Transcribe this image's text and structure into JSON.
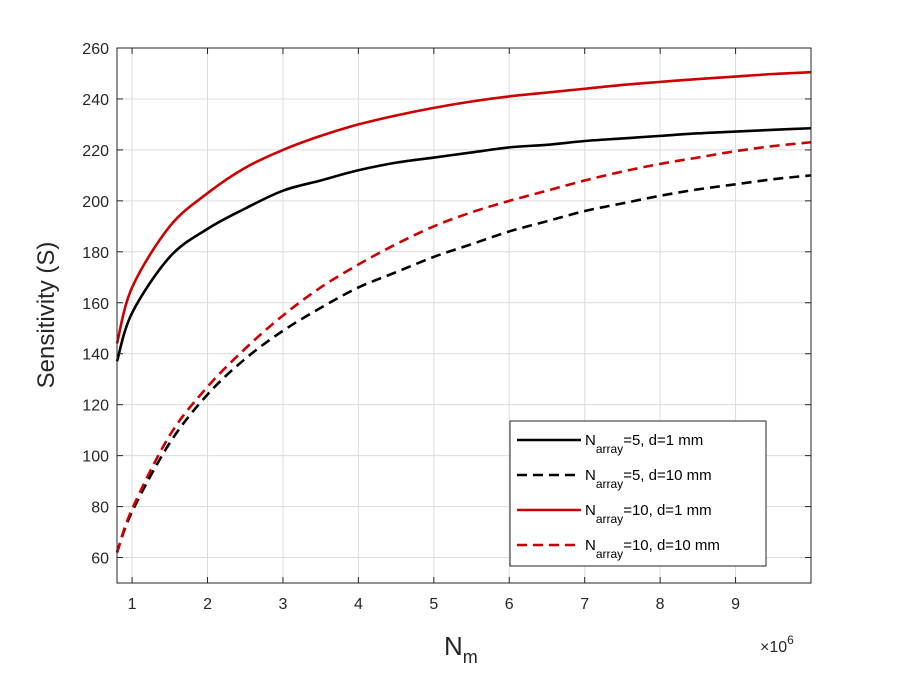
{
  "chart_data": {
    "type": "line",
    "xlabel": {
      "main": "N",
      "sub": "m"
    },
    "ylabel": "Sensitivity (S)",
    "x_multiplier": {
      "prefix": "×10",
      "exp": "6"
    },
    "xlim": [
      0.8,
      10.0
    ],
    "ylim": [
      50,
      260
    ],
    "xticks": [
      1,
      2,
      3,
      4,
      5,
      6,
      7,
      8,
      9
    ],
    "yticks": [
      60,
      80,
      100,
      120,
      140,
      160,
      180,
      200,
      220,
      240,
      260
    ],
    "grid": true,
    "legend_position": "bottom-right",
    "x": [
      0.8,
      1.0,
      1.5,
      2.0,
      2.5,
      3.0,
      3.5,
      4.0,
      4.5,
      5.0,
      5.5,
      6.0,
      6.5,
      7.0,
      7.5,
      8.0,
      8.5,
      9.0,
      9.5,
      10.0
    ],
    "series": [
      {
        "name": {
          "prefix": "N",
          "sub": "array",
          "suffix": "=5, d=1 mm"
        },
        "color": "#000000",
        "dash": "solid",
        "values": [
          137,
          156,
          178,
          189,
          197,
          204,
          208,
          212,
          215,
          217,
          219,
          221,
          222,
          223.5,
          224.5,
          225.5,
          226.5,
          227.2,
          227.9,
          228.5
        ]
      },
      {
        "name": {
          "prefix": "N",
          "sub": "array",
          "suffix": "=5, d=10 mm"
        },
        "color": "#000000",
        "dash": "dashed",
        "values": [
          62,
          78,
          105,
          124,
          138,
          149,
          158,
          166,
          172,
          178,
          183,
          188,
          192,
          196,
          199,
          202,
          204.5,
          206.5,
          208.5,
          210
        ]
      },
      {
        "name": {
          "prefix": "N",
          "sub": "array",
          "suffix": "=10, d=1 mm"
        },
        "color": "#cc0000",
        "dash": "solid",
        "values": [
          144,
          166,
          190,
          203,
          213,
          220,
          225.5,
          230,
          233.5,
          236.5,
          239,
          241,
          242.5,
          244,
          245.5,
          246.7,
          247.8,
          248.8,
          249.8,
          250.5
        ]
      },
      {
        "name": {
          "prefix": "N",
          "sub": "array",
          "suffix": "=10, d=10 mm"
        },
        "color": "#cc0000",
        "dash": "dashed",
        "values": [
          62,
          79,
          108,
          127,
          142,
          155,
          166,
          175,
          183,
          190,
          195.5,
          200,
          204,
          208,
          211.5,
          214.5,
          217,
          219.5,
          221.5,
          223
        ]
      }
    ]
  }
}
